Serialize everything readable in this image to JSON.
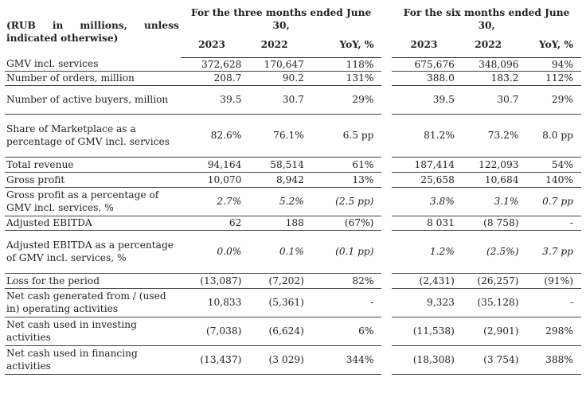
{
  "header": {
    "units": "(RUB in millions, unless indicated otherwise)",
    "three_months": "For the three months ended June 30,",
    "six_months": "For the six months ended June 30,",
    "col_2023": "2023",
    "col_2022": "2022",
    "col_yoy": "YoY, %"
  },
  "rows": [
    {
      "label": "GMV incl. services",
      "q23": "372,628",
      "q22": "170,647",
      "qy": "118%",
      "h23": "675,676",
      "h22": "348,096",
      "hy": "94%",
      "italic": false
    },
    {
      "label": "Number of orders, million",
      "q23": "208.7",
      "q22": "90.2",
      "qy": "131%",
      "h23": "388.0",
      "h22": "183.2",
      "hy": "112%",
      "italic": false
    },
    {
      "label": "Number of active buyers, million",
      "q23": "39.5",
      "q22": "30.7",
      "qy": "29%",
      "h23": "39.5",
      "h22": "30.7",
      "hy": "29%",
      "italic": false
    },
    {
      "label": "Share of Marketplace as a percentage of GMV incl. services",
      "q23": "82.6%",
      "q22": "76.1%",
      "qy": "6.5 pp",
      "h23": "81.2%",
      "h22": "73.2%",
      "hy": "8.0 pp",
      "italic": false
    },
    {
      "label": "Total revenue",
      "q23": "94,164",
      "q22": "58,514",
      "qy": "61%",
      "h23": "187,414",
      "h22": "122,093",
      "hy": "54%",
      "italic": false
    },
    {
      "label": "Gross profit",
      "q23": "10,070",
      "q22": "8,942",
      "qy": "13%",
      "h23": "25,658",
      "h22": "10,684",
      "hy": "140%",
      "italic": false
    },
    {
      "label": "Gross profit as a percentage of GMV incl. services, %",
      "q23": "2.7%",
      "q22": "5.2%",
      "qy": "(2.5 pp)",
      "h23": "3.8%",
      "h22": "3.1%",
      "hy": "0.7 pp",
      "italic": true
    },
    {
      "label": "Adjusted EBITDA",
      "q23": "62",
      "q22": "188",
      "qy": "(67%)",
      "h23": "8 031",
      "h22": "(8 758)",
      "hy": "-",
      "italic": false
    },
    {
      "label": "Adjusted EBITDA as a percentage of GMV incl. services, %",
      "q23": "0.0%",
      "q22": "0.1%",
      "qy": "(0.1 pp)",
      "h23": "1.2%",
      "h22": "(2.5%)",
      "hy": "3.7 pp",
      "italic": true
    },
    {
      "label": "Loss for the period",
      "q23": "(13,087)",
      "q22": "(7,202)",
      "qy": "82%",
      "h23": "(2,431)",
      "h22": "(26,257)",
      "hy": "(91%)",
      "italic": false
    },
    {
      "label": "Net cash generated from / (used in) operating activities",
      "q23": "10,833",
      "q22": "(5,361)",
      "qy": "-",
      "h23": "9,323",
      "h22": "(35,128)",
      "hy": "-",
      "italic": false
    },
    {
      "label": "Net cash used in investing activities",
      "q23": "(7,038)",
      "q22": "(6,624)",
      "qy": "6%",
      "h23": "(11,538)",
      "h22": "(2,901)",
      "hy": "298%",
      "italic": false
    },
    {
      "label": "Net cash used in financing activities",
      "q23": "(13,437)",
      "q22": "(3 029)",
      "qy": "344%",
      "h23": "(18,308)",
      "h22": "(3 754)",
      "hy": "388%",
      "italic": false
    }
  ]
}
